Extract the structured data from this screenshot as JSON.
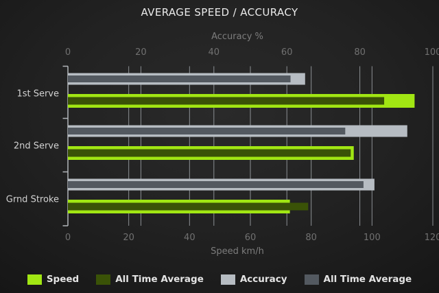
{
  "title": "AVERAGE SPEED / ACCURACY",
  "chart_data": {
    "type": "bar",
    "orientation": "horizontal",
    "title": "AVERAGE SPEED / ACCURACY",
    "categories": [
      "1st Serve",
      "2nd Serve",
      "Grnd Stroke"
    ],
    "series": [
      {
        "name": "Speed",
        "axis": "bottom",
        "role": "outer-green",
        "color": "#a1e613",
        "values": [
          114,
          94,
          73
        ]
      },
      {
        "name": "All Time Average",
        "axis": "bottom",
        "role": "inner-green",
        "color": "#3a5207",
        "values": [
          104,
          93,
          79
        ]
      },
      {
        "name": "Accuracy",
        "axis": "top",
        "role": "outer-gray",
        "color": "#b6bcc2",
        "values": [
          65,
          93,
          84
        ]
      },
      {
        "name": "All Time Average",
        "axis": "top",
        "role": "inner-gray",
        "color": "#535960",
        "values": [
          61,
          76,
          81
        ]
      }
    ],
    "axes": {
      "top": {
        "label": "Accuracy %",
        "min": 0,
        "max": 100,
        "ticks": [
          0,
          20,
          40,
          60,
          80,
          100
        ]
      },
      "bottom": {
        "label": "Speed km/h",
        "min": 0,
        "max": 120,
        "ticks": [
          0,
          20,
          40,
          60,
          80,
          100,
          120
        ]
      }
    },
    "grid": true,
    "legend_position": "bottom"
  },
  "legend": [
    {
      "label": "Speed",
      "color": "#a1e613"
    },
    {
      "label": "All Time Average",
      "color": "#3a5207"
    },
    {
      "label": "Accuracy",
      "color": "#b6bcc2"
    },
    {
      "label": "All Time Average",
      "color": "#535960"
    }
  ],
  "colors": {
    "background_center": "#2a2a2a",
    "background_edge": "#101010",
    "gridline": "#8c9094",
    "axis_line": "#b2b6ba",
    "tick_label": "#717171",
    "axis_title": "#7d7d7d",
    "category_label": "#d2d2d2",
    "title_text": "#ebebeb",
    "legend_text": "#e4e4e4"
  }
}
